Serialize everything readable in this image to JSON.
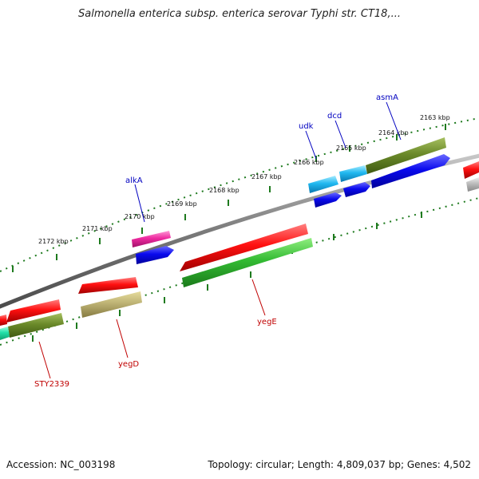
{
  "title": "Salmonella enterica subsp. enterica serovar Typhi str. CT18,...",
  "accession": "Accession: NC_003198",
  "topology": "Topology: circular; Length: 4,809,037 bp; Genes: 4,502",
  "colors": {
    "backbone": "#808080",
    "tick_track": "#1e7a1e",
    "forward_label": "#0000c0",
    "reverse_label": "#c00000"
  },
  "ticks": [
    "2163 kbp",
    "2164 kbp",
    "2165 kbp",
    "2166 kbp",
    "2167 kbp",
    "2168 kbp",
    "2169 kbp",
    "2170 kbp",
    "2171 kbp",
    "2172 kbp"
  ],
  "gene_labels": [
    {
      "name": "asmA",
      "strand": "forward"
    },
    {
      "name": "dcd",
      "strand": "forward"
    },
    {
      "name": "udk",
      "strand": "forward"
    },
    {
      "name": "alkA",
      "strand": "forward"
    },
    {
      "name": "yegE",
      "strand": "reverse"
    },
    {
      "name": "yegD",
      "strand": "reverse"
    },
    {
      "name": "STY2339",
      "strand": "reverse"
    }
  ]
}
